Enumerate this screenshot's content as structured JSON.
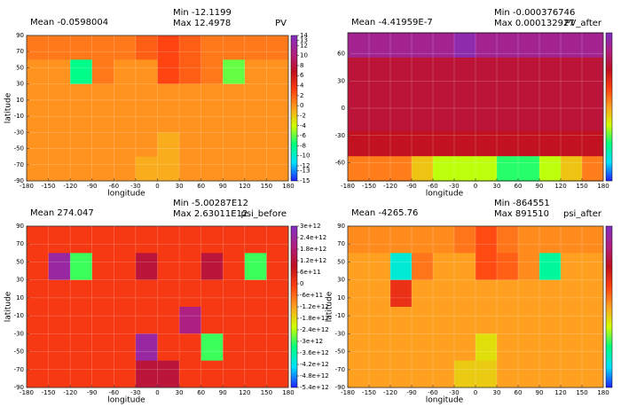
{
  "chart_data": [
    {
      "type": "heatmap",
      "title": "PV",
      "mean": "Mean -0.0598004",
      "min": "Min -12.1199",
      "max": "Max 12.4978",
      "xlabel": "longitude",
      "ylabel": "latitude",
      "xlim": [
        -180,
        180
      ],
      "ylim": [
        -90,
        90
      ],
      "xticks": [
        -180,
        -150,
        -120,
        -90,
        -60,
        -30,
        0,
        30,
        60,
        90,
        120,
        150,
        180
      ],
      "yticks": [
        -90,
        -70,
        -50,
        -30,
        -10,
        10,
        30,
        50,
        70,
        90
      ],
      "clim": [
        -15,
        14
      ],
      "cticks": [
        14,
        13,
        12,
        10,
        8,
        6,
        4,
        2,
        0,
        -2,
        -4,
        -6,
        -8,
        -10,
        -12,
        -13,
        -15
      ],
      "colorscale": [
        "#2020ff",
        "#00e0ff",
        "#00ff80",
        "#d0ff00",
        "#ffa020",
        "#ff4010",
        "#c01020",
        "#b02080",
        "#8030c0"
      ],
      "values": [
        [
          1,
          1,
          1,
          1,
          1,
          2,
          3,
          2,
          1,
          1,
          1,
          1
        ],
        [
          0,
          0,
          -8,
          1,
          0,
          0,
          3,
          2,
          1,
          -6,
          0,
          0
        ],
        [
          0,
          0,
          0,
          0,
          0,
          0,
          0,
          0,
          0,
          0,
          0,
          0
        ],
        [
          0,
          0,
          0,
          0,
          0,
          0,
          0,
          0,
          0,
          0,
          0,
          0
        ],
        [
          0,
          0,
          0,
          0,
          0,
          0,
          -1,
          0,
          0,
          0,
          0,
          0
        ],
        [
          0,
          0,
          0,
          0,
          0,
          -1,
          -1,
          0,
          0,
          0,
          0,
          0
        ]
      ]
    },
    {
      "type": "heatmap",
      "title": "PV_after",
      "mean": "Mean -4.41959E-7",
      "min": "Min -0.000376746",
      "max": "Max 0.000132927",
      "xlabel": "longitude",
      "xlim": [
        -180,
        180
      ],
      "ylim": [
        -80,
        83
      ],
      "xticks": [
        -180,
        -150,
        -120,
        -90,
        -60,
        -30,
        0,
        30,
        60,
        90,
        120,
        150,
        180
      ],
      "yticks": [
        -60,
        -30,
        0,
        30,
        60
      ],
      "clim": [
        -0.0004,
        0.00015
      ],
      "colorscale": [
        "#2020ff",
        "#00e0ff",
        "#00ff80",
        "#d0ff00",
        "#ffa020",
        "#ff4010",
        "#c01020",
        "#b02080",
        "#8030c0"
      ],
      "values": [
        [
          0.0001,
          0.0001,
          0.0001,
          0.0001,
          0.0001,
          0.00013,
          0.0001,
          0.0001,
          0.0001,
          0.0001,
          0.0001,
          0.0001
        ],
        [
          3e-05,
          3e-05,
          3e-05,
          3e-05,
          3e-05,
          3e-05,
          3e-05,
          3e-05,
          3e-05,
          3e-05,
          3e-05,
          3e-05
        ],
        [
          3e-05,
          3e-05,
          3e-05,
          3e-05,
          3e-05,
          3e-05,
          3e-05,
          3e-05,
          3e-05,
          3e-05,
          3e-05,
          3e-05
        ],
        [
          3e-05,
          3e-05,
          3e-05,
          3e-05,
          3e-05,
          3e-05,
          3e-05,
          3e-05,
          3e-05,
          3e-05,
          3e-05,
          3e-05
        ],
        [
          1e-05,
          1e-05,
          1e-05,
          1e-05,
          1e-05,
          1e-05,
          1e-05,
          1e-05,
          1e-05,
          1e-05,
          1e-05,
          1e-05
        ],
        [
          -0.0001,
          -0.0001,
          -0.0001,
          -0.00015,
          -0.0002,
          -0.0002,
          -0.0002,
          -0.00025,
          -0.00025,
          -0.0002,
          -0.00015,
          -0.0001
        ]
      ]
    },
    {
      "type": "heatmap",
      "title": "psi_before",
      "mean": "Mean 274.047",
      "min": "Min -5.00287E12",
      "max": "Max 2.63011E12",
      "xlabel": "longitude",
      "ylabel": "latitude",
      "xlim": [
        -180,
        180
      ],
      "ylim": [
        -90,
        90
      ],
      "xticks": [
        -180,
        -150,
        -120,
        -90,
        -60,
        -30,
        0,
        30,
        60,
        90,
        120,
        150,
        180
      ],
      "yticks": [
        -90,
        -70,
        -50,
        -30,
        -10,
        10,
        30,
        50,
        70,
        90
      ],
      "clim": [
        -5400000000000,
        3000000000000
      ],
      "cticks": [
        {
          "value": 3000000000000,
          "label": "3e+12"
        },
        {
          "value": 2400000000000,
          "label": "2.4e+12"
        },
        {
          "value": 1800000000000,
          "label": "1.8e+12"
        },
        {
          "value": 1200000000000,
          "label": "1.2e+12"
        },
        {
          "value": 600000000000,
          "label": "6e+11"
        },
        0,
        {
          "value": -600000000000,
          "label": "-6e+11"
        },
        {
          "value": -1200000000000,
          "label": "-1.2e+12"
        },
        {
          "value": -1800000000000,
          "label": "-1.8e+12"
        },
        {
          "value": -2400000000000,
          "label": "-2.4e+12"
        },
        {
          "value": -3000000000000,
          "label": "-3e+12"
        },
        {
          "value": -3600000000000,
          "label": "-3.6e+12"
        },
        {
          "value": -4200000000000,
          "label": "-4.2e+12"
        },
        {
          "value": -4800000000000,
          "label": "-4.8e+12"
        },
        {
          "value": -5400000000000,
          "label": "-5.4e+12"
        }
      ],
      "colorscale": [
        "#2020ff",
        "#00e0ff",
        "#00ff80",
        "#d0ff00",
        "#ffa020",
        "#ff4010",
        "#c01020",
        "#b02080",
        "#8030c0"
      ],
      "values": [
        [
          0,
          0,
          0,
          0,
          0,
          0,
          0,
          0,
          0,
          0,
          0,
          0
        ],
        [
          0,
          2500000000000,
          -3000000000000,
          0,
          0,
          1200000000000,
          0,
          0,
          1200000000000,
          0,
          -3000000000000,
          0
        ],
        [
          0,
          0,
          0,
          0,
          0,
          0,
          0,
          0,
          0,
          0,
          0,
          0
        ],
        [
          0,
          0,
          0,
          0,
          0,
          0,
          0,
          2000000000000,
          0,
          0,
          0,
          0
        ],
        [
          0,
          0,
          0,
          0,
          0,
          2500000000000,
          0,
          0,
          -3000000000000,
          0,
          0,
          0
        ],
        [
          0,
          0,
          0,
          0,
          0,
          1200000000000,
          1200000000000,
          0,
          0,
          0,
          0,
          0
        ]
      ]
    },
    {
      "type": "heatmap",
      "title": "psi_after",
      "mean": "Mean -4265.76",
      "min": "Min -864551",
      "max": "Max 891510",
      "xlabel": "longitude",
      "ylabel": "latitude",
      "xlim": [
        -180,
        180
      ],
      "ylim": [
        -90,
        90
      ],
      "xticks": [
        -180,
        -150,
        -120,
        -90,
        -60,
        -30,
        0,
        30,
        60,
        90,
        120,
        150,
        180
      ],
      "yticks": [
        -90,
        -70,
        -50,
        -30,
        -10,
        10,
        30,
        50,
        70,
        90
      ],
      "clim": [
        -900000,
        900000
      ],
      "colorscale": [
        "#2020ff",
        "#00e0ff",
        "#00ff80",
        "#d0ff00",
        "#ffa020",
        "#ff4010",
        "#c01020",
        "#b02080",
        "#8030c0"
      ],
      "values": [
        [
          50000,
          50000,
          50000,
          50000,
          50000,
          100000,
          200000,
          100000,
          50000,
          50000,
          50000,
          50000
        ],
        [
          0,
          0,
          -600000,
          100000,
          0,
          0,
          200000,
          150000,
          50000,
          -500000,
          0,
          0
        ],
        [
          0,
          0,
          300000,
          0,
          0,
          0,
          0,
          0,
          0,
          0,
          0,
          0
        ],
        [
          0,
          0,
          0,
          0,
          0,
          0,
          0,
          0,
          0,
          0,
          0,
          0
        ],
        [
          0,
          0,
          0,
          0,
          0,
          0,
          -150000,
          0,
          0,
          0,
          0,
          0
        ],
        [
          0,
          0,
          0,
          0,
          0,
          -100000,
          -100000,
          0,
          0,
          0,
          0,
          0
        ]
      ]
    }
  ]
}
